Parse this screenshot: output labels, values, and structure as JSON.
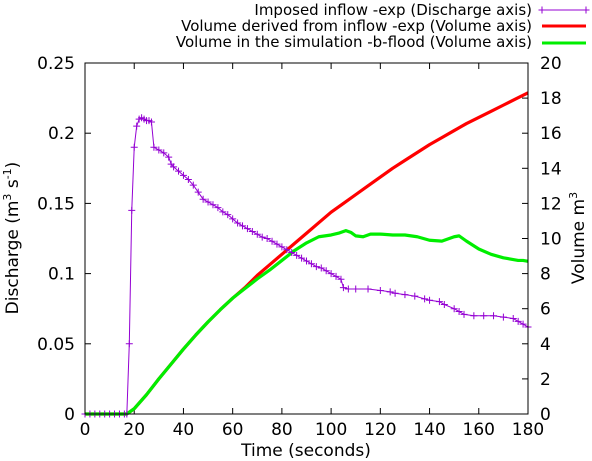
{
  "chart_data": {
    "type": "line",
    "title": "",
    "xlabel": "Time (seconds)",
    "ylabel_left": {
      "text": "Discharge (m",
      "sup1": "3",
      "mid": " s",
      "sup2": "-1",
      "end": ")"
    },
    "ylabel_right": {
      "text": "Volume m",
      "sup": "3"
    },
    "xlim": [
      0,
      180
    ],
    "ylim_left": [
      0,
      0.25
    ],
    "ylim_right": [
      0,
      20
    ],
    "grid": false,
    "legend_position": "top-right",
    "x_ticks": [
      "0",
      "20",
      "40",
      "60",
      "80",
      "100",
      "120",
      "140",
      "160",
      "180"
    ],
    "y_left_ticks": [
      "0",
      "0.05",
      "0.1",
      "0.15",
      "0.2",
      "0.25"
    ],
    "y_right_ticks": [
      "0",
      "2",
      "4",
      "6",
      "8",
      "10",
      "12",
      "14",
      "16",
      "18",
      "20"
    ],
    "series": [
      {
        "name": "Imposed inflow -exp (Discharge axis)",
        "axis": "left",
        "color": "#9400d3",
        "marker": "plus",
        "points": [
          [
            0,
            0
          ],
          [
            2,
            0
          ],
          [
            4,
            0
          ],
          [
            6,
            0
          ],
          [
            8,
            0
          ],
          [
            10,
            0
          ],
          [
            12,
            0
          ],
          [
            14,
            0
          ],
          [
            16,
            0
          ],
          [
            17,
            0
          ],
          [
            18,
            0.05
          ],
          [
            19,
            0.145
          ],
          [
            20,
            0.19
          ],
          [
            21,
            0.205
          ],
          [
            22,
            0.21
          ],
          [
            23,
            0.211
          ],
          [
            24,
            0.21
          ],
          [
            25,
            0.209
          ],
          [
            26,
            0.209
          ],
          [
            27,
            0.208
          ],
          [
            28,
            0.19
          ],
          [
            30,
            0.188
          ],
          [
            32,
            0.186
          ],
          [
            34,
            0.183
          ],
          [
            35,
            0.178
          ],
          [
            36,
            0.176
          ],
          [
            38,
            0.173
          ],
          [
            40,
            0.17
          ],
          [
            42,
            0.167
          ],
          [
            44,
            0.163
          ],
          [
            46,
            0.158
          ],
          [
            48,
            0.153
          ],
          [
            50,
            0.151
          ],
          [
            52,
            0.149
          ],
          [
            54,
            0.147
          ],
          [
            56,
            0.144
          ],
          [
            58,
            0.142
          ],
          [
            60,
            0.139
          ],
          [
            62,
            0.136
          ],
          [
            64,
            0.134
          ],
          [
            66,
            0.132
          ],
          [
            68,
            0.13
          ],
          [
            70,
            0.128
          ],
          [
            72,
            0.126
          ],
          [
            74,
            0.125
          ],
          [
            76,
            0.123
          ],
          [
            78,
            0.121
          ],
          [
            80,
            0.119
          ],
          [
            82,
            0.117
          ],
          [
            84,
            0.115
          ],
          [
            86,
            0.113
          ],
          [
            88,
            0.111
          ],
          [
            90,
            0.109
          ],
          [
            92,
            0.107
          ],
          [
            94,
            0.105
          ],
          [
            96,
            0.104
          ],
          [
            98,
            0.102
          ],
          [
            100,
            0.1
          ],
          [
            102,
            0.098
          ],
          [
            104,
            0.096
          ],
          [
            105,
            0.09
          ],
          [
            107,
            0.089
          ],
          [
            110,
            0.089
          ],
          [
            115,
            0.089
          ],
          [
            120,
            0.088
          ],
          [
            124,
            0.087
          ],
          [
            126,
            0.086
          ],
          [
            130,
            0.085
          ],
          [
            134,
            0.084
          ],
          [
            138,
            0.082
          ],
          [
            140,
            0.081
          ],
          [
            144,
            0.08
          ],
          [
            146,
            0.078
          ],
          [
            150,
            0.075
          ],
          [
            152,
            0.073
          ],
          [
            154,
            0.071
          ],
          [
            158,
            0.07
          ],
          [
            162,
            0.07
          ],
          [
            166,
            0.07
          ],
          [
            170,
            0.069
          ],
          [
            174,
            0.068
          ],
          [
            176,
            0.066
          ],
          [
            178,
            0.064
          ],
          [
            180,
            0.062
          ]
        ]
      },
      {
        "name": "Volume derived from inflow -exp (Volume axis)",
        "axis": "right",
        "color": "#ff0000",
        "points": [
          [
            0,
            0
          ],
          [
            17,
            0
          ],
          [
            20,
            0.3
          ],
          [
            25,
            1.1
          ],
          [
            30,
            2.0
          ],
          [
            35,
            2.85
          ],
          [
            40,
            3.7
          ],
          [
            45,
            4.5
          ],
          [
            50,
            5.25
          ],
          [
            55,
            5.95
          ],
          [
            60,
            6.6
          ],
          [
            65,
            7.2
          ],
          [
            70,
            7.9
          ],
          [
            75,
            8.5
          ],
          [
            80,
            9.1
          ],
          [
            85,
            9.7
          ],
          [
            90,
            10.3
          ],
          [
            95,
            10.9
          ],
          [
            100,
            11.5
          ],
          [
            105,
            12.0
          ],
          [
            110,
            12.5
          ],
          [
            115,
            13.0
          ],
          [
            120,
            13.5
          ],
          [
            125,
            14.0
          ],
          [
            130,
            14.45
          ],
          [
            135,
            14.9
          ],
          [
            140,
            15.35
          ],
          [
            145,
            15.75
          ],
          [
            150,
            16.15
          ],
          [
            155,
            16.55
          ],
          [
            160,
            16.9
          ],
          [
            165,
            17.25
          ],
          [
            170,
            17.6
          ],
          [
            175,
            17.95
          ],
          [
            180,
            18.3
          ]
        ]
      },
      {
        "name": "Volume in the simulation -b-flood (Volume axis)",
        "axis": "right",
        "color": "#00ee00",
        "points": [
          [
            0,
            0
          ],
          [
            17,
            0
          ],
          [
            20,
            0.3
          ],
          [
            25,
            1.1
          ],
          [
            30,
            2.0
          ],
          [
            35,
            2.85
          ],
          [
            40,
            3.7
          ],
          [
            45,
            4.5
          ],
          [
            50,
            5.25
          ],
          [
            55,
            5.95
          ],
          [
            60,
            6.6
          ],
          [
            65,
            7.15
          ],
          [
            70,
            7.7
          ],
          [
            75,
            8.2
          ],
          [
            80,
            8.75
          ],
          [
            85,
            9.3
          ],
          [
            90,
            9.75
          ],
          [
            95,
            10.1
          ],
          [
            100,
            10.2
          ],
          [
            103,
            10.3
          ],
          [
            106,
            10.45
          ],
          [
            108,
            10.35
          ],
          [
            110,
            10.15
          ],
          [
            113,
            10.1
          ],
          [
            116,
            10.25
          ],
          [
            120,
            10.25
          ],
          [
            125,
            10.2
          ],
          [
            130,
            10.2
          ],
          [
            135,
            10.1
          ],
          [
            140,
            9.9
          ],
          [
            145,
            9.85
          ],
          [
            150,
            10.1
          ],
          [
            152,
            10.15
          ],
          [
            155,
            9.85
          ],
          [
            160,
            9.4
          ],
          [
            165,
            9.1
          ],
          [
            170,
            8.9
          ],
          [
            174,
            8.8
          ],
          [
            176,
            8.75
          ],
          [
            178,
            8.75
          ],
          [
            180,
            8.7
          ]
        ]
      }
    ]
  }
}
